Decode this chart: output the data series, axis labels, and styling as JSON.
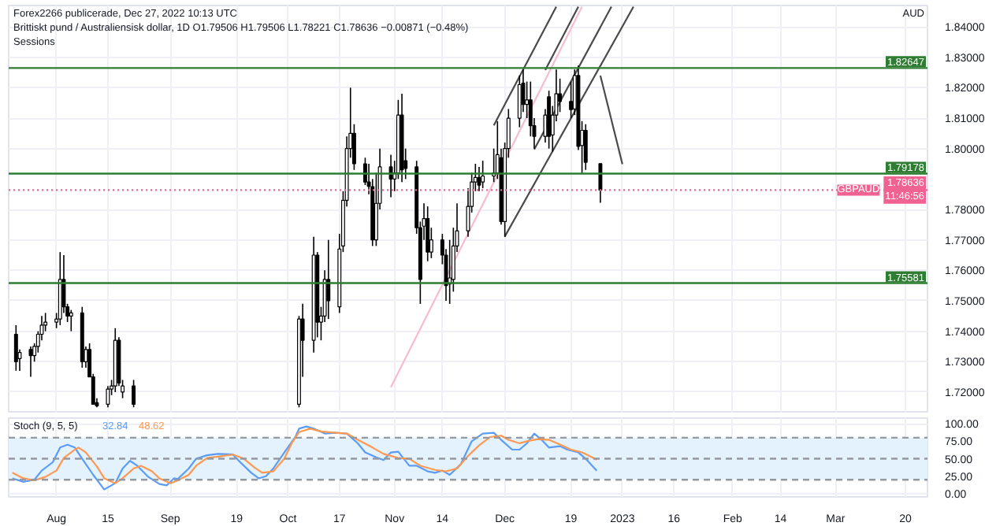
{
  "chart_data": [
    {
      "type": "candlestick",
      "title": "Brittiskt pund / Australiensisk dollar, 1D  O1.79506 H1.79506 L1.78221 C1.78636 −0.00871 (−0.48%)",
      "subtitle": "Sessions",
      "ylabel": "AUD",
      "annotations": [
        "Forex2266 publicerade, Dec 27, 2022 10:13 UTC",
        {
          "text": "GBPAUD",
          "x": "2023-03-13",
          "y": 1.78636
        }
      ],
      "x": [
        "2022-07-21",
        "2022-07-22",
        "2022-07-25",
        "2022-07-26",
        "2022-07-27",
        "2022-07-28",
        "2022-07-29",
        "2022-08-01",
        "2022-08-02",
        "2022-08-03",
        "2022-08-04",
        "2022-08-05",
        "2022-08-08",
        "2022-08-09",
        "2022-08-10",
        "2022-08-11",
        "2022-08-12",
        "2022-08-15",
        "2022-08-16",
        "2022-08-17",
        "2022-08-18",
        "2022-08-19",
        "2022-08-22",
        "2022-10-06",
        "2022-10-07",
        "2022-10-10",
        "2022-10-11",
        "2022-10-12",
        "2022-10-13",
        "2022-10-14",
        "2022-10-17",
        "2022-10-18",
        "2022-10-19",
        "2022-10-20",
        "2022-10-21",
        "2022-10-24",
        "2022-10-25",
        "2022-10-26",
        "2022-10-27",
        "2022-10-28",
        "2022-10-31",
        "2022-11-01",
        "2022-11-02",
        "2022-11-03",
        "2022-11-04",
        "2022-11-07",
        "2022-11-08",
        "2022-11-09",
        "2022-11-10",
        "2022-11-11",
        "2022-11-14",
        "2022-11-15",
        "2022-11-16",
        "2022-11-17",
        "2022-11-18",
        "2022-11-21",
        "2022-11-22",
        "2022-11-23",
        "2022-11-24",
        "2022-11-25",
        "2022-11-28",
        "2022-11-29",
        "2022-11-30",
        "2022-12-01",
        "2022-12-02",
        "2022-12-05",
        "2022-12-06",
        "2022-12-07",
        "2022-12-08",
        "2022-12-09",
        "2022-12-12",
        "2022-12-13",
        "2022-12-14",
        "2022-12-15",
        "2022-12-16",
        "2022-12-19",
        "2022-12-20",
        "2022-12-21",
        "2022-12-22",
        "2022-12-23",
        "2022-12-27"
      ],
      "ohlc": [
        [
          1.739,
          1.742,
          1.727,
          1.73
        ],
        [
          1.731,
          1.734,
          1.727,
          1.733
        ],
        [
          1.734,
          1.735,
          1.725,
          1.732
        ],
        [
          1.732,
          1.736,
          1.73,
          1.735
        ],
        [
          1.735,
          1.74,
          1.733,
          1.739
        ],
        [
          1.739,
          1.745,
          1.737,
          1.742
        ],
        [
          1.742,
          1.746,
          1.74,
          1.743
        ],
        [
          1.743,
          1.746,
          1.741,
          1.744
        ],
        [
          1.744,
          1.766,
          1.742,
          1.757
        ],
        [
          1.757,
          1.765,
          1.746,
          1.748
        ],
        [
          1.748,
          1.749,
          1.743,
          1.745
        ],
        [
          1.745,
          1.747,
          1.74,
          1.746
        ],
        [
          1.746,
          1.748,
          1.728,
          1.73
        ],
        [
          1.73,
          1.735,
          1.728,
          1.734
        ],
        [
          1.734,
          1.736,
          1.725,
          1.725
        ],
        [
          1.725,
          1.726,
          1.716,
          1.716
        ],
        [
          1.7165,
          1.718,
          1.715,
          1.7155
        ],
        [
          1.716,
          1.722,
          1.715,
          1.721
        ],
        [
          1.721,
          1.724,
          1.719,
          1.722
        ],
        [
          1.722,
          1.741,
          1.72,
          1.737
        ],
        [
          1.737,
          1.738,
          1.722,
          1.723
        ],
        [
          1.72,
          1.724,
          1.718,
          1.722
        ],
        [
          1.722,
          1.724,
          1.715,
          1.716
        ],
        [
          1.716,
          1.745,
          1.715,
          1.744
        ],
        [
          1.744,
          1.749,
          1.725,
          1.737
        ],
        [
          1.737,
          1.771,
          1.733,
          1.765
        ],
        [
          1.765,
          1.766,
          1.738,
          1.743
        ],
        [
          1.743,
          1.748,
          1.737,
          1.745
        ],
        [
          1.745,
          1.76,
          1.743,
          1.757
        ],
        [
          1.757,
          1.77,
          1.744,
          1.75
        ],
        [
          1.748,
          1.772,
          1.746,
          1.767
        ],
        [
          1.768,
          1.786,
          1.766,
          1.783
        ],
        [
          1.783,
          1.804,
          1.781,
          1.8
        ],
        [
          1.8,
          1.82,
          1.797,
          1.805
        ],
        [
          1.805,
          1.808,
          1.793,
          1.795
        ],
        [
          1.795,
          1.797,
          1.788,
          1.789
        ],
        [
          1.789,
          1.795,
          1.785,
          1.7876
        ],
        [
          1.7875,
          1.79,
          1.768,
          1.77
        ],
        [
          1.77,
          1.792,
          1.768,
          1.782
        ],
        [
          1.782,
          1.8,
          1.78,
          1.794
        ],
        [
          1.794,
          1.798,
          1.784,
          1.79
        ],
        [
          1.79,
          1.796,
          1.786,
          1.792
        ],
        [
          1.792,
          1.816,
          1.79,
          1.811
        ],
        [
          1.811,
          1.818,
          1.789,
          1.793
        ],
        [
          1.796,
          1.8,
          1.79,
          1.7935
        ],
        [
          1.794,
          1.796,
          1.772,
          1.774
        ],
        [
          1.774,
          1.776,
          1.749,
          1.757
        ],
        [
          1.7745,
          1.782,
          1.77,
          1.777
        ],
        [
          1.777,
          1.781,
          1.763,
          1.766
        ],
        [
          1.766,
          1.774,
          1.764,
          1.77
        ],
        [
          1.77,
          1.772,
          1.762,
          1.765
        ],
        [
          1.765,
          1.767,
          1.75,
          1.755
        ],
        [
          1.7555,
          1.77,
          1.749,
          1.7575
        ],
        [
          1.757,
          1.774,
          1.753,
          1.768
        ],
        [
          1.768,
          1.782,
          1.766,
          1.773
        ],
        [
          1.773,
          1.787,
          1.771,
          1.781
        ],
        [
          1.781,
          1.792,
          1.779,
          1.789
        ],
        [
          1.789,
          1.795,
          1.786,
          1.7905
        ],
        [
          1.7905,
          1.794,
          1.786,
          1.788
        ],
        [
          1.789,
          1.796,
          1.787,
          1.791
        ],
        [
          1.791,
          1.8,
          1.789,
          1.792
        ],
        [
          1.792,
          1.809,
          1.79,
          1.798
        ],
        [
          1.797,
          1.8,
          1.775,
          1.776
        ],
        [
          1.776,
          1.802,
          1.771,
          1.8
        ],
        [
          1.8,
          1.813,
          1.797,
          1.81
        ],
        [
          1.81,
          1.824,
          1.807,
          1.821
        ],
        [
          1.8215,
          1.826,
          1.812,
          1.8145
        ],
        [
          1.8145,
          1.822,
          1.81,
          1.816
        ],
        [
          1.816,
          1.822,
          1.804,
          1.8075
        ],
        [
          1.8075,
          1.81,
          1.8,
          1.804
        ],
        [
          1.804,
          1.813,
          1.802,
          1.811
        ],
        [
          1.817,
          1.819,
          1.8,
          1.804
        ],
        [
          1.8045,
          1.814,
          1.799,
          1.811
        ],
        [
          1.811,
          1.826,
          1.809,
          1.818
        ],
        [
          1.818,
          1.823,
          1.812,
          1.8155
        ],
        [
          1.8155,
          1.822,
          1.81,
          1.8128
        ],
        [
          1.813,
          1.826,
          1.811,
          1.824
        ],
        [
          1.824,
          1.8273,
          1.7995,
          1.8007
        ],
        [
          1.801,
          1.809,
          1.792,
          1.806
        ],
        [
          1.806,
          1.808,
          1.793,
          1.7955
        ],
        [
          1.79506,
          1.79506,
          1.78221,
          1.78636
        ]
      ],
      "series": [
        {
          "type": "line",
          "color": "#4a4a4a",
          "x": [
            "2022-11-28",
            "2022-12-15"
          ],
          "values": [
            1.8076,
            1.8466
          ]
        },
        {
          "type": "line",
          "color": "#4a4a4a",
          "x": [
            "2022-12-12",
            "2022-12-21"
          ],
          "values": [
            1.8258,
            1.8466
          ]
        },
        {
          "type": "line",
          "color": "#4a4a4a",
          "x": [
            "2022-12-09",
            "2022-12-30"
          ],
          "values": [
            1.7997,
            1.8466
          ]
        },
        {
          "type": "line",
          "color": "#4a4a4a",
          "x": [
            "2022-12-01",
            "2023-01-05"
          ],
          "values": [
            1.7711,
            1.8466
          ]
        },
        {
          "type": "line",
          "color": "#f8bbd0",
          "x": [
            "2022-10-31",
            "2022-12-22"
          ],
          "values": [
            1.7216,
            1.8466
          ]
        },
        {
          "type": "line",
          "color": "#4a4a4a",
          "x": [
            "2022-12-27",
            "2023-01-02"
          ],
          "values": [
            1.824,
            1.7949
          ]
        }
      ],
      "ref_lines": [
        {
          "axis": "y",
          "value": 1.82647,
          "label": "1.82647",
          "color": "#2e7d32"
        },
        {
          "axis": "y",
          "value": 1.79178,
          "label": "1.79178",
          "color": "#2e7d32"
        },
        {
          "axis": "y",
          "value": 1.75581,
          "label": "1.75581",
          "color": "#2e7d32"
        },
        {
          "axis": "y",
          "value": 1.78636,
          "label": "1.78636\n11:46:56",
          "color": "#f06292",
          "line_style": "dotted"
        }
      ],
      "xlim": [
        "2022-07-19",
        "2023-03-26"
      ],
      "ylim": [
        1.713,
        1.847
      ],
      "xticks": [
        {
          "value": "2022-08-01",
          "label": null
        },
        {
          "value": "2022-08-15",
          "label": null
        },
        {
          "value": "2022-09-01",
          "label": null
        },
        {
          "value": "2022-09-19",
          "label": null
        },
        {
          "value": "2022-10-03",
          "label": null
        },
        {
          "value": "2022-10-17",
          "label": null
        },
        {
          "value": "2022-11-01",
          "label": null
        },
        {
          "value": "2022-11-14",
          "label": null
        },
        {
          "value": "2022-12-01",
          "label": null
        },
        {
          "value": "2022-12-19",
          "label": null
        },
        {
          "value": "2023-01-02",
          "label": null
        },
        {
          "value": "2023-01-16",
          "label": null
        },
        {
          "value": "2023-02-01",
          "label": null
        },
        {
          "value": "2023-02-14",
          "label": null
        },
        {
          "value": "2023-03-01",
          "label": null
        },
        {
          "value": "2023-03-20",
          "label": null
        }
      ],
      "yticks": [
        {
          "value": 1.72,
          "label": "1.72000"
        },
        {
          "value": 1.73,
          "label": "1.73000"
        },
        {
          "value": 1.74,
          "label": "1.74000"
        },
        {
          "value": 1.75,
          "label": "1.75000"
        },
        {
          "value": 1.76,
          "label": "1.76000"
        },
        {
          "value": 1.77,
          "label": "1.77000"
        },
        {
          "value": 1.78,
          "label": "1.78000"
        },
        {
          "value": 1.8,
          "label": "1.80000"
        },
        {
          "value": 1.81,
          "label": "1.81000"
        },
        {
          "value": 1.82,
          "label": "1.82000"
        },
        {
          "value": 1.83,
          "label": "1.83000"
        },
        {
          "value": 1.84,
          "label": "1.84000"
        }
      ],
      "grid": true,
      "tick_labels": "y"
    },
    {
      "type": "line",
      "title": "Stoch (9, 5, 5)",
      "annotations": [
        "32.84",
        "48.62"
      ],
      "series": [
        {
          "color": "#5b9cf6",
          "x": [
            "2022-07-20",
            "2022-07-23",
            "2022-07-26",
            "2022-07-28",
            "2022-07-31",
            "2022-08-02",
            "2022-08-04",
            "2022-08-06",
            "2022-08-08",
            "2022-08-11",
            "2022-08-14",
            "2022-08-17",
            "2022-08-19",
            "2022-08-21",
            "2022-08-23",
            "2022-08-26",
            "2022-08-29",
            "2022-08-31",
            "2022-09-02",
            "2022-09-03",
            "2022-09-06",
            "2022-09-08",
            "2022-09-11",
            "2022-09-14",
            "2022-09-18",
            "2022-09-20",
            "2022-09-23",
            "2022-09-25",
            "2022-09-27",
            "2022-09-29",
            "2022-10-02",
            "2022-10-05",
            "2022-10-06",
            "2022-10-08",
            "2022-10-10",
            "2022-10-13",
            "2022-10-16",
            "2022-10-19",
            "2022-10-22",
            "2022-10-24",
            "2022-10-27",
            "2022-10-29",
            "2022-10-31",
            "2022-11-02",
            "2022-11-05",
            "2022-11-07",
            "2022-11-10",
            "2022-11-12",
            "2022-11-14",
            "2022-11-16",
            "2022-11-19",
            "2022-11-22",
            "2022-11-25",
            "2022-11-28",
            "2022-11-30",
            "2022-12-03",
            "2022-12-05",
            "2022-12-07",
            "2022-12-09",
            "2022-12-11",
            "2022-12-13",
            "2022-12-16",
            "2022-12-18",
            "2022-12-21",
            "2022-12-23",
            "2022-12-26"
          ],
          "values": [
            22,
            17,
            20,
            33,
            45,
            66,
            70,
            66,
            50,
            27,
            6,
            15,
            36,
            47,
            40,
            24,
            14,
            12,
            22,
            21,
            36,
            50,
            55,
            57,
            56,
            45,
            30,
            22,
            25,
            36,
            59,
            81,
            93,
            96,
            93,
            86,
            87,
            86,
            72,
            59,
            52,
            48,
            59,
            60,
            40,
            40,
            32,
            30,
            33,
            27,
            42,
            75,
            86,
            87,
            77,
            63,
            63,
            72,
            86,
            77,
            66,
            68,
            63,
            59,
            50,
            32.84
          ]
        },
        {
          "color": "#ff9850",
          "x": [
            "2022-07-20",
            "2022-07-23",
            "2022-07-26",
            "2022-07-29",
            "2022-08-01",
            "2022-08-03",
            "2022-08-06",
            "2022-08-07",
            "2022-08-09",
            "2022-08-12",
            "2022-08-14",
            "2022-08-17",
            "2022-08-19",
            "2022-08-22",
            "2022-08-24",
            "2022-08-27",
            "2022-08-29",
            "2022-09-01",
            "2022-09-03",
            "2022-09-06",
            "2022-09-08",
            "2022-09-11",
            "2022-09-14",
            "2022-09-18",
            "2022-09-21",
            "2022-09-24",
            "2022-09-26",
            "2022-09-29",
            "2022-10-02",
            "2022-10-04",
            "2022-10-06",
            "2022-10-09",
            "2022-10-12",
            "2022-10-16",
            "2022-10-19",
            "2022-10-22",
            "2022-10-26",
            "2022-10-29",
            "2022-11-02",
            "2022-11-05",
            "2022-11-08",
            "2022-11-12",
            "2022-11-15",
            "2022-11-18",
            "2022-11-21",
            "2022-11-24",
            "2022-11-27",
            "2022-11-30",
            "2022-12-02",
            "2022-12-05",
            "2022-12-07",
            "2022-12-10",
            "2022-12-13",
            "2022-12-17",
            "2022-12-19",
            "2022-12-22",
            "2022-12-24",
            "2022-12-26"
          ],
          "values": [
            30,
            22,
            19,
            24,
            33,
            51,
            63,
            66,
            59,
            39,
            22,
            15,
            22,
            36,
            40,
            32,
            22,
            15,
            19,
            27,
            40,
            51,
            53,
            56,
            50,
            37,
            30,
            32,
            50,
            72,
            88,
            93,
            89,
            87,
            86,
            77,
            66,
            57,
            51,
            50,
            40,
            34,
            32,
            36,
            54,
            69,
            81,
            83,
            77,
            72,
            75,
            78,
            77,
            68,
            63,
            59,
            54,
            48.62
          ]
        }
      ],
      "bands": [
        {
          "axis": "y",
          "from": 20,
          "to": 80,
          "color": "#e3f2fd"
        }
      ],
      "ref_lines": [
        {
          "axis": "y",
          "value": 80,
          "color": "#9598a1",
          "line_style": "dashed"
        },
        {
          "axis": "y",
          "value": 50,
          "color": "#9598a1",
          "line_style": "dashed"
        },
        {
          "axis": "y",
          "value": 20,
          "color": "#9598a1",
          "line_style": "dashed"
        }
      ],
      "xlim": [
        "2022-07-19",
        "2023-03-26"
      ],
      "ylim": [
        -4.5,
        108
      ],
      "xticks": [
        {
          "value": "2022-08-01",
          "label": "Aug"
        },
        {
          "value": "2022-08-15",
          "label": "15"
        },
        {
          "value": "2022-09-01",
          "label": "Sep"
        },
        {
          "value": "2022-09-19",
          "label": "19"
        },
        {
          "value": "2022-10-03",
          "label": "Oct"
        },
        {
          "value": "2022-10-17",
          "label": "17"
        },
        {
          "value": "2022-11-01",
          "label": "Nov"
        },
        {
          "value": "2022-11-14",
          "label": "14"
        },
        {
          "value": "2022-12-01",
          "label": "Dec"
        },
        {
          "value": "2022-12-19",
          "label": "19"
        },
        {
          "value": "2023-01-02",
          "label": "2023"
        },
        {
          "value": "2023-01-16",
          "label": "16"
        },
        {
          "value": "2023-02-01",
          "label": "Feb"
        },
        {
          "value": "2023-02-14",
          "label": "14"
        },
        {
          "value": "2023-03-01",
          "label": "Mar"
        },
        {
          "value": "2023-03-20",
          "label": "20"
        }
      ],
      "yticks": [
        {
          "value": 0,
          "label": "0.00"
        },
        {
          "value": 25,
          "label": "25.00"
        },
        {
          "value": 50,
          "label": "50.00"
        },
        {
          "value": 75,
          "label": "75.00"
        },
        {
          "value": 100,
          "label": "100.00"
        }
      ],
      "grid": true
    }
  ]
}
